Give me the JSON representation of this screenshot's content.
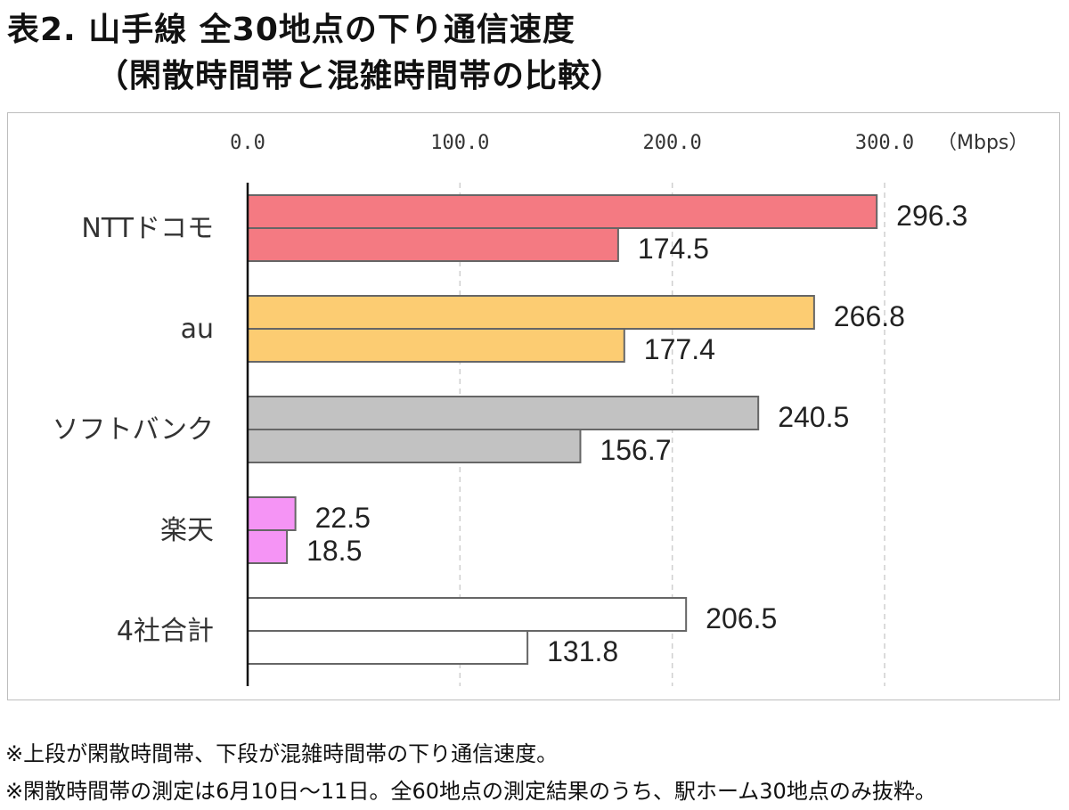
{
  "header": {
    "title_line1": "表2. 山手線 全30地点の下り通信速度",
    "title_line2": "（閑散時間帯と混雑時間帯の比較）"
  },
  "notes": {
    "line1": "※上段が閑散時間帯、下段が混雑時間帯の下り通信速度。",
    "line2": "※閑散時間帯の測定は6月10日～11日。全60地点の測定結果のうち、駅ホーム30地点のみ抜粋。"
  },
  "chart_data": {
    "type": "bar",
    "orientation": "horizontal",
    "unit_label": "（Mbps）",
    "xlim": [
      0,
      300
    ],
    "ticks": [
      "0.0",
      "100.0",
      "200.0",
      "300.0"
    ],
    "tick_values": [
      0,
      100,
      200,
      300
    ],
    "grid": true,
    "categories": [
      "NTTドコモ",
      "au",
      "ソフトバンク",
      "楽天",
      "4社合計"
    ],
    "series": [
      {
        "values": [
          296.3,
          266.8,
          240.5,
          22.5,
          206.5
        ],
        "labels": [
          "296.3",
          "266.8",
          "240.5",
          "22.5",
          "206.5"
        ]
      },
      {
        "values": [
          174.5,
          177.4,
          156.7,
          18.5,
          131.8
        ],
        "labels": [
          "174.5",
          "177.4",
          "156.7",
          "18.5",
          "131.8"
        ]
      }
    ],
    "colors": [
      "#f47a82",
      "#fccc72",
      "#c2c2c2",
      "#f594f5",
      "#ffffff"
    ],
    "bar_stroke": "#666666"
  }
}
